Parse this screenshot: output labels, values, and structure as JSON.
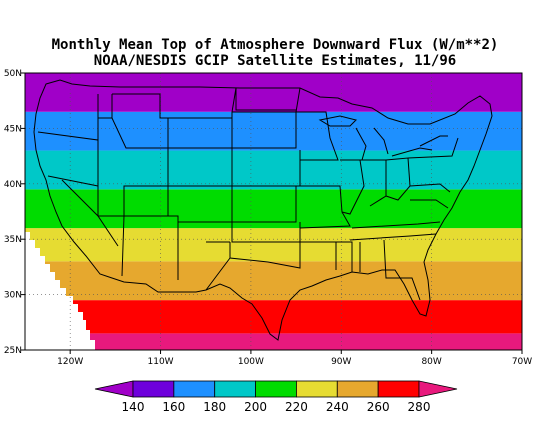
{
  "title": {
    "line1": "Monthly Mean Top of Atmosphere Downward Flux (W/m**2)",
    "line2": "NOAA/NESDIS GCIP Satellite Estimates, 11/96"
  },
  "chart_data": {
    "type": "heatmap",
    "region": "Continental United States",
    "xlim": [
      -125,
      -70
    ],
    "ylim": [
      25,
      50
    ],
    "x_ticks": [
      {
        "value": -120,
        "label": "120W"
      },
      {
        "value": -110,
        "label": "110W"
      },
      {
        "value": -100,
        "label": "100W"
      },
      {
        "value": -90,
        "label": "90W"
      },
      {
        "value": -80,
        "label": "80W"
      },
      {
        "value": -70,
        "label": "70W"
      }
    ],
    "y_ticks": [
      {
        "value": 25,
        "label": "25N"
      },
      {
        "value": 30,
        "label": "30N"
      },
      {
        "value": 35,
        "label": "35N"
      },
      {
        "value": 40,
        "label": "40N"
      },
      {
        "value": 45,
        "label": "45N"
      },
      {
        "value": 50,
        "label": "50N"
      }
    ],
    "grid": true,
    "bands": [
      {
        "lat_min": 25.0,
        "lat_max": 26.5,
        "color": "#e8197d"
      },
      {
        "lat_min": 26.5,
        "lat_max": 29.5,
        "color": "#ff0000"
      },
      {
        "lat_min": 29.5,
        "lat_max": 33.0,
        "color": "#e6a82e"
      },
      {
        "lat_min": 33.0,
        "lat_max": 36.0,
        "color": "#e6dc32"
      },
      {
        "lat_min": 36.0,
        "lat_max": 39.5,
        "color": "#00dc00"
      },
      {
        "lat_min": 39.5,
        "lat_max": 43.0,
        "color": "#00c8c8"
      },
      {
        "lat_min": 43.0,
        "lat_max": 46.5,
        "color": "#1e90ff"
      },
      {
        "lat_min": 46.5,
        "lat_max": 50.5,
        "color": "#a000c8"
      }
    ],
    "colorbar": {
      "levels": [
        140,
        160,
        180,
        200,
        220,
        240,
        260,
        280
      ],
      "labels": [
        "140",
        "160",
        "180",
        "200",
        "220",
        "240",
        "260",
        "280"
      ],
      "colors": [
        "#a000c8",
        "#6e00dc",
        "#1e90ff",
        "#00c8c8",
        "#00dc00",
        "#e6dc32",
        "#e6a82e",
        "#ff0000",
        "#e8197d"
      ]
    }
  }
}
